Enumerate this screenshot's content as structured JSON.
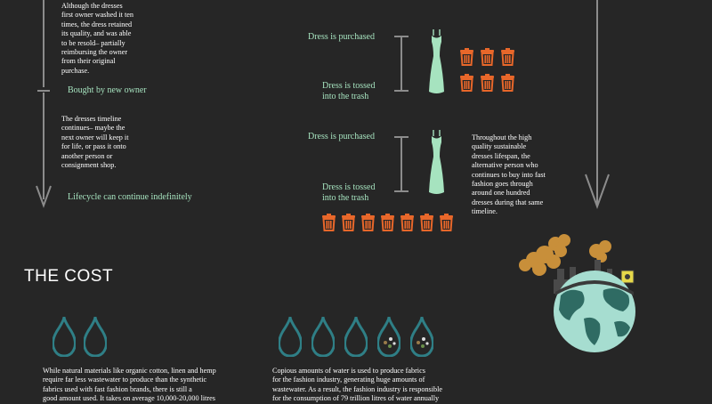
{
  "left_column": {
    "intro_text": [
      "Although the dresses",
      "first  owner washed it ten",
      "times, the dress retained",
      "its quality, and was able",
      "to be resold– partially",
      "reimbursing the owner",
      "from their original",
      "purchase."
    ],
    "bought_label": "Bought by new owner",
    "timeline_text": [
      "The dresses timeline",
      "continues– maybe the",
      "next owner will keep it",
      "for life, or pass it onto",
      "another person or",
      "consignment shop."
    ],
    "lifecycle_label": "Lifecycle can continue indefinitely"
  },
  "middle_column": {
    "group1": {
      "purchased": "Dress is purchased",
      "tossed": [
        "Dress is tossed",
        "into the trash"
      ]
    },
    "group2": {
      "purchased": "Dress is purchased",
      "tossed": [
        "Dress is tossed",
        "into the trash"
      ]
    },
    "side_text": [
      "Throughout the high",
      "quality sustainable",
      "dresses lifespan, the",
      "alternative person who",
      "continues to buy into fast",
      "fashion goes through",
      "around one hundred",
      "dresses during that same",
      "timeline."
    ]
  },
  "cost": {
    "title": "THE COST",
    "left_text": [
      "While natural materials like organic cotton, linen and hemp",
      "require far less wastewater to produce than the synthetic",
      "fabrics used with fast fashion brands, there is still a",
      "good amount used. It takes on average 10,000-20,000 litres"
    ],
    "right_text": [
      "Copious amounts of water is used to produce fabrics",
      "for the fashion industry, generating huge amounts of",
      "wastewater. As a result, the fashion industry is responsible",
      "for the consumption of 79 trillion litres of water annually"
    ]
  },
  "colors": {
    "background": "#262626",
    "mint": "#a6e3bf",
    "orange": "#e8672a",
    "teal": "#2f7f86",
    "gray_line": "#8c8c8c"
  },
  "icons": [
    "dress-icon",
    "trash-can-icon",
    "water-drop-icon",
    "polluted-water-drop-icon",
    "earth-pollution-icon",
    "arrow-down-icon"
  ]
}
